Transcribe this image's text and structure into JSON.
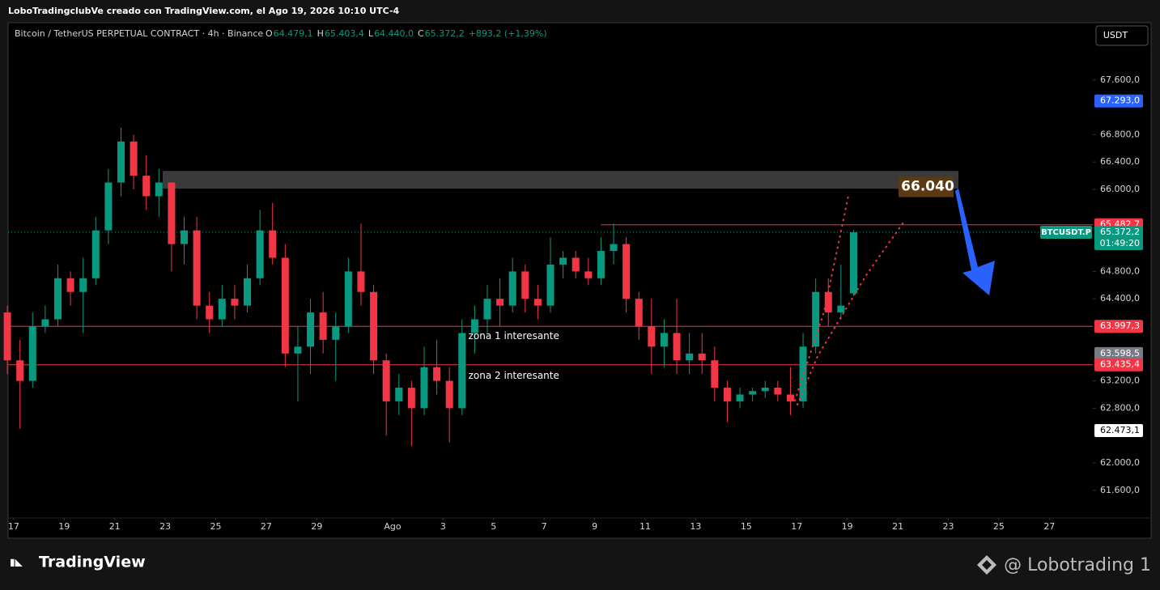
{
  "header": {
    "attribution": "LoboTradingclubVe creado con TradingView.com, el Ago 19, 2026 10:10 UTC-4",
    "symbol": "Bitcoin / TetherUS PERPETUAL CONTRACT · 4h · Binance",
    "ohlc": [
      {
        "k": "O",
        "v": "64.479,1"
      },
      {
        "k": "H",
        "v": "65.403,4"
      },
      {
        "k": "L",
        "v": "64.440,0"
      },
      {
        "k": "C",
        "v": "65.372,2"
      }
    ],
    "change": "+893,2 (+1,39%)",
    "currency": "USDT"
  },
  "footer": {
    "logo": "TradingView",
    "watermark": "@ Lobotrading 1"
  },
  "chart_data": {
    "type": "candlestick",
    "up_color": "#089981",
    "down_color": "#f23645",
    "x": [
      -0.25,
      0.25,
      0.75,
      1.25,
      1.75,
      2.25,
      2.75,
      3.25,
      3.75,
      4.25,
      4.75,
      5.25,
      5.75,
      6.25,
      6.75,
      7.25,
      7.75,
      8.25,
      8.75,
      9.25,
      9.75,
      10.25,
      10.75,
      11.25,
      11.75,
      12.25,
      12.75,
      13.25,
      13.75,
      14.25,
      14.75,
      15.25,
      15.75,
      16.25,
      16.75,
      17.25,
      17.75,
      18.25,
      18.75,
      19.25,
      19.75,
      20.25,
      20.75,
      21.25,
      21.75,
      22.25,
      22.75,
      23.25,
      23.75,
      24.25,
      24.75,
      25.25,
      25.75,
      26.25,
      26.75,
      27.25,
      27.75,
      28.25,
      28.75,
      29.25,
      29.75,
      30.25,
      30.75,
      31.25,
      31.75,
      32.25,
      32.75,
      33.25
    ],
    "open": [
      64200,
      63500,
      63200,
      64000,
      64100,
      64700,
      64500,
      64700,
      65400,
      66100,
      66700,
      66200,
      65900,
      66100,
      65200,
      65400,
      64300,
      64100,
      64400,
      64300,
      64700,
      65400,
      65000,
      63600,
      63700,
      64200,
      63800,
      64000,
      64800,
      64500,
      63500,
      62900,
      63100,
      62800,
      63400,
      63200,
      62800,
      63900,
      64100,
      64400,
      64300,
      64800,
      64400,
      64300,
      64900,
      65000,
      64800,
      64700,
      65100,
      65200,
      64400,
      64000,
      63700,
      63900,
      63500,
      63600,
      63500,
      63100,
      62900,
      63000,
      63050,
      63100,
      63000,
      62900,
      63700,
      64500,
      64200,
      64479.1
    ],
    "high": [
      64300,
      63800,
      64200,
      64300,
      64900,
      64800,
      65000,
      65600,
      66300,
      66900,
      66800,
      66500,
      66300,
      66100,
      65600,
      65600,
      64500,
      64600,
      64600,
      64900,
      65700,
      65800,
      65200,
      64000,
      64400,
      64500,
      64200,
      65000,
      65500,
      64600,
      63600,
      63300,
      63200,
      63700,
      63800,
      63400,
      64100,
      64300,
      64600,
      64700,
      65000,
      64900,
      64600,
      65300,
      65100,
      65100,
      65000,
      65300,
      65500,
      65300,
      64500,
      64400,
      64100,
      64400,
      63900,
      63900,
      63700,
      63200,
      63100,
      63100,
      63200,
      63200,
      63400,
      63900,
      64700,
      64700,
      64900,
      65403.4
    ],
    "low": [
      63300,
      62500,
      63100,
      63900,
      64000,
      64300,
      63900,
      64600,
      65200,
      65900,
      66000,
      65700,
      65600,
      64800,
      64900,
      64100,
      63900,
      64000,
      64100,
      64200,
      64600,
      64900,
      63400,
      62900,
      63300,
      63600,
      63200,
      63900,
      64300,
      63300,
      62400,
      62700,
      62250,
      62700,
      63000,
      62300,
      62700,
      63600,
      63900,
      64000,
      64200,
      64200,
      64100,
      64200,
      64700,
      64700,
      64600,
      64600,
      64900,
      64200,
      63800,
      63300,
      63400,
      63300,
      63300,
      63300,
      62900,
      62600,
      62800,
      62900,
      62950,
      62900,
      62700,
      62800,
      63600,
      64000,
      64100,
      64440
    ],
    "close": [
      63500,
      63200,
      64000,
      64100,
      64700,
      64500,
      64700,
      65400,
      66100,
      66700,
      66200,
      65900,
      66100,
      65200,
      65400,
      64300,
      64100,
      64400,
      64300,
      64700,
      65400,
      65000,
      63600,
      63700,
      64200,
      63800,
      64000,
      64800,
      64500,
      63500,
      62900,
      63100,
      62800,
      63400,
      63200,
      62800,
      63900,
      64100,
      64400,
      64300,
      64800,
      64400,
      64300,
      64900,
      65000,
      64800,
      64700,
      65100,
      65200,
      64400,
      64000,
      63700,
      63900,
      63500,
      63600,
      63500,
      63100,
      62900,
      63000,
      63050,
      63100,
      63000,
      62900,
      63700,
      64500,
      64200,
      64300,
      65372.2
    ],
    "xlim": [
      -0.22,
      42.72
    ],
    "xticks": [
      {
        "value": 0,
        "label": "17"
      },
      {
        "value": 2,
        "label": "19"
      },
      {
        "value": 4,
        "label": "21"
      },
      {
        "value": 6,
        "label": "23"
      },
      {
        "value": 8,
        "label": "25"
      },
      {
        "value": 10,
        "label": "27"
      },
      {
        "value": 12,
        "label": "29"
      },
      {
        "value": 15,
        "label": "Ago"
      },
      {
        "value": 17,
        "label": "3"
      },
      {
        "value": 19,
        "label": "5"
      },
      {
        "value": 21,
        "label": "7"
      },
      {
        "value": 23,
        "label": "9"
      },
      {
        "value": 25,
        "label": "11"
      },
      {
        "value": 27,
        "label": "13"
      },
      {
        "value": 29,
        "label": "15"
      },
      {
        "value": 31,
        "label": "17"
      },
      {
        "value": 33,
        "label": "19"
      },
      {
        "value": 35,
        "label": "21"
      },
      {
        "value": 37,
        "label": "23"
      },
      {
        "value": 39,
        "label": "25"
      },
      {
        "value": 41,
        "label": "27"
      }
    ],
    "ylim": [
      61195,
      68414
    ],
    "yticks": [
      {
        "value": 67600,
        "label": "67.600,0"
      },
      {
        "value": 66800,
        "label": "66.800,0"
      },
      {
        "value": 66400,
        "label": "66.400,0"
      },
      {
        "value": 66000,
        "label": "66.000,0"
      },
      {
        "value": 64800,
        "label": "64.800,0"
      },
      {
        "value": 64400,
        "label": "64.400,0"
      },
      {
        "value": 63200,
        "label": "63.200,0"
      },
      {
        "value": 62800,
        "label": "62.800,0"
      },
      {
        "value": 62000,
        "label": "62.000,0"
      },
      {
        "value": 61600,
        "label": "61.600,0"
      }
    ],
    "zone": {
      "bottom": 66010,
      "top": 66270,
      "x_from": 5.9,
      "x_to": 37.4,
      "color": "#3a3a3a",
      "tag": {
        "value": 66040,
        "label": "66.040"
      }
    },
    "price_labels": [
      {
        "value": 67293.0,
        "label": "67.293,0",
        "color": "#2962ff",
        "text_color": "#ffffff"
      },
      {
        "value": 65482.7,
        "label": "65.482,7",
        "color": "#f23645",
        "text_color": "#ffffff",
        "line_from": 23.25
      },
      {
        "value": 65372.2,
        "label": "65.372,2",
        "color": "#089981",
        "text_color": "#ffffff",
        "symbol": "BTCUSDT.P",
        "countdown": "01:49:20",
        "dotted_from": -0.22
      },
      {
        "value": 63997.3,
        "label": "63.997,3",
        "color": "#f23645",
        "text_color": "#ffffff",
        "line_from": -0.22
      },
      {
        "value": 63598.5,
        "label": "63.598,5",
        "color": "#787b86",
        "text_color": "#ffffff"
      },
      {
        "value": 63435.4,
        "label": "63.435,4",
        "color": "#f23645",
        "text_color": "#ffffff",
        "line_from": -0.22
      },
      {
        "value": 62473.1,
        "label": "62.473,1",
        "color": "#ffffff",
        "text_color": "#000000"
      }
    ],
    "annotations": [
      {
        "text": "zona 1 interesante",
        "x": 19.8,
        "y": 63850
      },
      {
        "text": "zona 2 interesante",
        "x": 19.8,
        "y": 63270
      }
    ]
  }
}
